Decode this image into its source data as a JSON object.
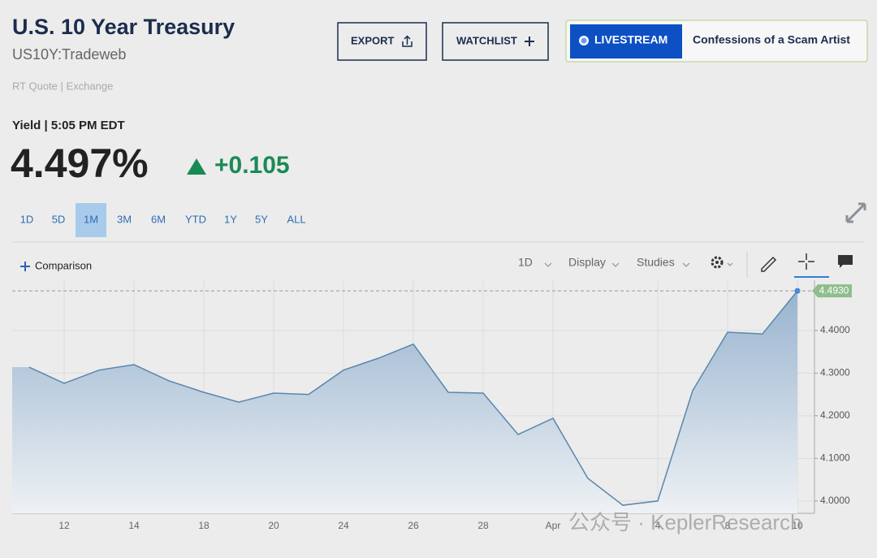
{
  "header": {
    "title": "U.S. 10 Year Treasury",
    "symbol": "US10Y:Tradeweb",
    "quote_source": "RT Quote | Exchange"
  },
  "buttons": {
    "export": "EXPORT",
    "watchlist": "WATCHLIST",
    "livestream": "LIVESTREAM",
    "show": "Confessions of a Scam Artist"
  },
  "quote": {
    "label": "Yield | 5:05 PM EDT",
    "price": "4.497%",
    "change": "+0.105"
  },
  "ranges": [
    "1D",
    "5D",
    "1M",
    "3M",
    "6M",
    "YTD",
    "1Y",
    "5Y",
    "ALL"
  ],
  "selected_range": 2,
  "toolbar": {
    "comparison": "Comparison",
    "interval": "1D",
    "display": "Display",
    "studies": "Studies"
  },
  "chart_data": {
    "type": "area",
    "categories": [
      null,
      "12",
      null,
      "14",
      null,
      "18",
      null,
      "20",
      null,
      "24",
      null,
      "26",
      null,
      "28",
      null,
      "Apr",
      null,
      null,
      "4",
      null,
      "8",
      null,
      "10"
    ],
    "values": [
      4.314,
      4.276,
      4.307,
      4.32,
      4.282,
      4.255,
      4.232,
      4.253,
      4.25,
      4.307,
      4.335,
      4.368,
      4.255,
      4.253,
      4.156,
      4.194,
      4.053,
      3.99,
      4.0,
      4.259,
      4.396,
      4.392,
      4.493
    ],
    "color": "#5b86ad",
    "ylim": [
      3.971,
      4.518
    ],
    "yticks": [
      {
        "value": 4.0,
        "label": "4.0000"
      },
      {
        "value": 4.1,
        "label": "4.1000"
      },
      {
        "value": 4.2,
        "label": "4.2000"
      },
      {
        "value": 4.3,
        "label": "4.3000"
      },
      {
        "value": 4.4,
        "label": "4.4000"
      }
    ],
    "current": {
      "value": 4.493,
      "label": "4.4930"
    },
    "grid": true
  },
  "watermark": "公众号 · KeplerResearch"
}
